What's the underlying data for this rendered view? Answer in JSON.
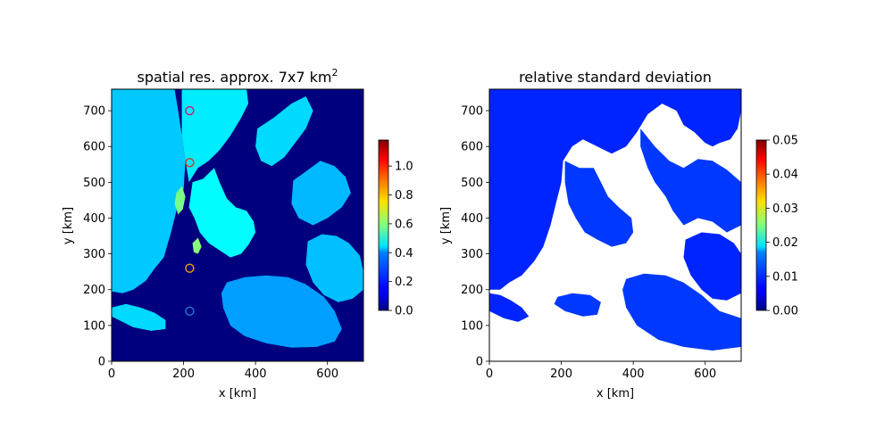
{
  "chart_data": [
    {
      "type": "heatmap",
      "title": "spatial res. approx. 7x7 km",
      "title_superscript": "2",
      "xlabel": "x [km]",
      "ylabel": "y [km]",
      "xlim": [
        0,
        700
      ],
      "ylim": [
        0,
        760
      ],
      "xticks": [
        "0",
        "200",
        "400",
        "600"
      ],
      "yticks": [
        "0",
        "100",
        "200",
        "300",
        "400",
        "500",
        "600",
        "700"
      ],
      "colormap": "jet",
      "colorbar": {
        "range": [
          0.0,
          1.18
        ],
        "ticks": [
          "0.0",
          "0.2",
          "0.4",
          "0.6",
          "0.8",
          "1.0"
        ],
        "tick_values": [
          0.0,
          0.2,
          0.4,
          0.6,
          0.8,
          1.0
        ]
      },
      "markers": [
        {
          "x": 217,
          "y": 700,
          "color": "#d4127a"
        },
        {
          "x": 217,
          "y": 555,
          "color": "#e0321e"
        },
        {
          "x": 217,
          "y": 260,
          "color": "#f0a000"
        },
        {
          "x": 217,
          "y": 140,
          "color": "#1f78d0"
        }
      ],
      "regions": [
        {
          "value": 0.38,
          "poly": [
            [
              0,
              760
            ],
            [
              175,
              760
            ],
            [
              185,
              700
            ],
            [
              195,
              630
            ],
            [
              205,
              560
            ],
            [
              200,
              480
            ],
            [
              180,
              420
            ],
            [
              165,
              360
            ],
            [
              145,
              290
            ],
            [
              120,
              260
            ],
            [
              95,
              225
            ],
            [
              60,
              200
            ],
            [
              30,
              190
            ],
            [
              0,
              195
            ]
          ]
        },
        {
          "value": 0.42,
          "poly": [
            [
              195,
              760
            ],
            [
              375,
              760
            ],
            [
              380,
              720
            ],
            [
              360,
              680
            ],
            [
              330,
              630
            ],
            [
              300,
              590
            ],
            [
              270,
              560
            ],
            [
              240,
              540
            ],
            [
              215,
              500
            ],
            [
              205,
              560
            ],
            [
              195,
              630
            ]
          ]
        },
        {
          "value": 0.44,
          "poly": [
            [
              225,
              500
            ],
            [
              255,
              510
            ],
            [
              285,
              540
            ],
            [
              300,
              500
            ],
            [
              320,
              455
            ],
            [
              345,
              430
            ],
            [
              375,
              420
            ],
            [
              395,
              390
            ],
            [
              400,
              360
            ],
            [
              380,
              325
            ],
            [
              360,
              300
            ],
            [
              330,
              290
            ],
            [
              300,
              310
            ],
            [
              270,
              330
            ],
            [
              245,
              360
            ],
            [
              230,
              400
            ],
            [
              215,
              430
            ]
          ]
        },
        {
          "value": 0.4,
          "poly": [
            [
              405,
              650
            ],
            [
              450,
              680
            ],
            [
              500,
              720
            ],
            [
              540,
              740
            ],
            [
              560,
              700
            ],
            [
              540,
              650
            ],
            [
              510,
              610
            ],
            [
              480,
              570
            ],
            [
              445,
              545
            ],
            [
              415,
              560
            ],
            [
              400,
              600
            ]
          ]
        },
        {
          "value": 0.36,
          "poly": [
            [
              505,
              505
            ],
            [
              540,
              530
            ],
            [
              580,
              560
            ],
            [
              620,
              545
            ],
            [
              650,
              515
            ],
            [
              665,
              470
            ],
            [
              640,
              430
            ],
            [
              600,
              400
            ],
            [
              560,
              380
            ],
            [
              520,
              400
            ],
            [
              500,
              440
            ]
          ]
        },
        {
          "value": 0.37,
          "poly": [
            [
              545,
              335
            ],
            [
              585,
              355
            ],
            [
              625,
              350
            ],
            [
              660,
              330
            ],
            [
              690,
              295
            ],
            [
              700,
              250
            ],
            [
              700,
              200
            ],
            [
              670,
              175
            ],
            [
              630,
              165
            ],
            [
              590,
              185
            ],
            [
              560,
              220
            ],
            [
              540,
              270
            ]
          ]
        },
        {
          "value": 0.33,
          "poly": [
            [
              320,
              220
            ],
            [
              370,
              235
            ],
            [
              430,
              240
            ],
            [
              490,
              235
            ],
            [
              540,
              215
            ],
            [
              590,
              180
            ],
            [
              620,
              140
            ],
            [
              640,
              90
            ],
            [
              620,
              55
            ],
            [
              570,
              40
            ],
            [
              500,
              38
            ],
            [
              430,
              50
            ],
            [
              370,
              70
            ],
            [
              330,
              100
            ],
            [
              310,
              150
            ],
            [
              305,
              190
            ]
          ]
        },
        {
          "value": 0.4,
          "poly": [
            [
              0,
              150
            ],
            [
              40,
              160
            ],
            [
              80,
              150
            ],
            [
              120,
              135
            ],
            [
              150,
              115
            ],
            [
              150,
              90
            ],
            [
              110,
              85
            ],
            [
              60,
              95
            ],
            [
              20,
              115
            ],
            [
              0,
              125
            ]
          ]
        },
        {
          "value": 0.58,
          "poly": [
            [
              180,
              470
            ],
            [
              195,
              490
            ],
            [
              205,
              460
            ],
            [
              198,
              425
            ],
            [
              185,
              410
            ],
            [
              175,
              440
            ]
          ]
        },
        {
          "value": 0.6,
          "poly": [
            [
              225,
              330
            ],
            [
              240,
              345
            ],
            [
              250,
              320
            ],
            [
              240,
              300
            ],
            [
              228,
              305
            ]
          ]
        }
      ]
    },
    {
      "type": "heatmap",
      "title": "relative standard deviation",
      "xlabel": "x [km]",
      "ylabel": "y [km]",
      "xlim": [
        0,
        700
      ],
      "ylim": [
        0,
        760
      ],
      "xticks": [
        "0",
        "200",
        "400",
        "600"
      ],
      "yticks": [
        "0",
        "100",
        "200",
        "300",
        "400",
        "500",
        "600",
        "700"
      ],
      "colormap": "jet",
      "colorbar": {
        "range": [
          0.0,
          0.05
        ],
        "ticks": [
          "0.00",
          "0.01",
          "0.02",
          "0.03",
          "0.04",
          "0.05"
        ],
        "tick_values": [
          0.0,
          0.01,
          0.02,
          0.03,
          0.04,
          0.05
        ]
      },
      "regions": [
        {
          "value": 0.008,
          "poly": [
            [
              0,
              760
            ],
            [
              700,
              760
            ],
            [
              700,
              700
            ],
            [
              690,
              650
            ],
            [
              670,
              620
            ],
            [
              640,
              610
            ],
            [
              620,
              600
            ],
            [
              600,
              610
            ],
            [
              570,
              640
            ],
            [
              540,
              660
            ],
            [
              520,
              700
            ],
            [
              480,
              720
            ],
            [
              440,
              690
            ],
            [
              410,
              640
            ],
            [
              380,
              600
            ],
            [
              340,
              580
            ],
            [
              300,
              600
            ],
            [
              260,
              620
            ],
            [
              230,
              600
            ],
            [
              205,
              560
            ],
            [
              200,
              500
            ],
            [
              185,
              440
            ],
            [
              170,
              380
            ],
            [
              150,
              320
            ],
            [
              125,
              280
            ],
            [
              90,
              240
            ],
            [
              55,
              220
            ],
            [
              30,
              200
            ],
            [
              0,
              200
            ]
          ]
        },
        {
          "value": 0.009,
          "poly": [
            [
              210,
              560
            ],
            [
              250,
              540
            ],
            [
              290,
              540
            ],
            [
              310,
              500
            ],
            [
              330,
              460
            ],
            [
              360,
              430
            ],
            [
              395,
              400
            ],
            [
              400,
              360
            ],
            [
              380,
              330
            ],
            [
              340,
              320
            ],
            [
              300,
              340
            ],
            [
              265,
              360
            ],
            [
              240,
              400
            ],
            [
              220,
              440
            ],
            [
              210,
              500
            ]
          ]
        },
        {
          "value": 0.009,
          "poly": [
            [
              420,
              650
            ],
            [
              460,
              600
            ],
            [
              500,
              560
            ],
            [
              540,
              540
            ],
            [
              580,
              565
            ],
            [
              620,
              560
            ],
            [
              660,
              535
            ],
            [
              700,
              500
            ],
            [
              700,
              380
            ],
            [
              660,
              360
            ],
            [
              620,
              390
            ],
            [
              580,
              400
            ],
            [
              540,
              380
            ],
            [
              510,
              420
            ],
            [
              490,
              460
            ],
            [
              460,
              500
            ],
            [
              440,
              540
            ],
            [
              420,
              600
            ]
          ]
        },
        {
          "value": 0.008,
          "poly": [
            [
              545,
              340
            ],
            [
              590,
              360
            ],
            [
              640,
              355
            ],
            [
              680,
              330
            ],
            [
              700,
              300
            ],
            [
              700,
              190
            ],
            [
              660,
              170
            ],
            [
              620,
              175
            ],
            [
              590,
              200
            ],
            [
              560,
              240
            ],
            [
              540,
              290
            ]
          ]
        },
        {
          "value": 0.009,
          "poly": [
            [
              380,
              230
            ],
            [
              430,
              245
            ],
            [
              490,
              240
            ],
            [
              540,
              220
            ],
            [
              590,
              185
            ],
            [
              640,
              140
            ],
            [
              700,
              120
            ],
            [
              700,
              40
            ],
            [
              620,
              30
            ],
            [
              540,
              40
            ],
            [
              470,
              60
            ],
            [
              410,
              100
            ],
            [
              380,
              150
            ],
            [
              370,
              200
            ]
          ]
        },
        {
          "value": 0.008,
          "poly": [
            [
              0,
              190
            ],
            [
              30,
              185
            ],
            [
              60,
              170
            ],
            [
              90,
              150
            ],
            [
              110,
              125
            ],
            [
              80,
              110
            ],
            [
              40,
              120
            ],
            [
              0,
              140
            ]
          ]
        },
        {
          "value": 0.009,
          "poly": [
            [
              190,
              180
            ],
            [
              230,
              190
            ],
            [
              280,
              185
            ],
            [
              310,
              165
            ],
            [
              300,
              130
            ],
            [
              260,
              125
            ],
            [
              210,
              140
            ],
            [
              180,
              160
            ]
          ]
        }
      ]
    }
  ]
}
